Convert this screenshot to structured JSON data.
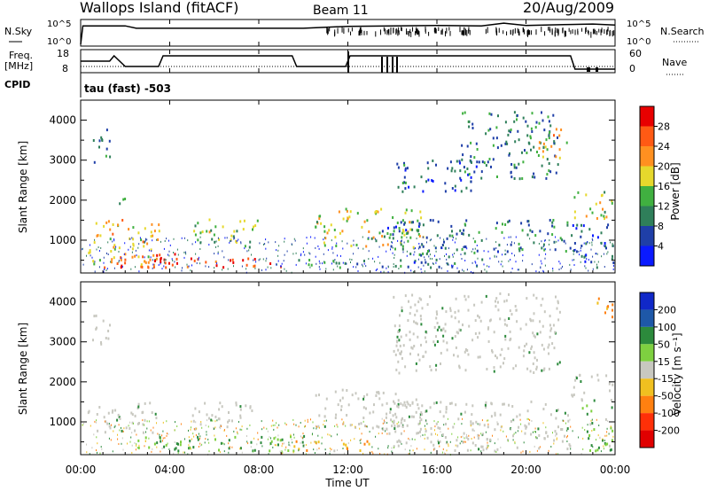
{
  "header": {
    "station": "Wallops Island (fitACF)",
    "beam": "Beam 11",
    "date": "20/Aug/2009"
  },
  "top_panels": {
    "nsky_label": "N.Sky",
    "nsearch_label": "N.Search",
    "freq_label": "Freq.",
    "freq_unit": "[MHz]",
    "nave_label": "Nave",
    "cpid_label": "CPID",
    "cpid_value": "tau (fast) -503",
    "noise_ticks_left": [
      "10^5",
      "10^0"
    ],
    "noise_ticks_right": [
      "10^5",
      "10^0"
    ],
    "freq_ticks": [
      "18",
      "8"
    ],
    "nave_ticks": [
      "60",
      "0"
    ]
  },
  "power_panel": {
    "ylabel": "Slant Range [km]",
    "colorbar_label": "Power [dB]",
    "colorbar_ticks": [
      "28",
      "24",
      "20",
      "16",
      "12",
      "8",
      "4"
    ]
  },
  "velocity_panel": {
    "ylabel": "Slant Range [km]",
    "colorbar_label": "Velocity [m s⁻¹]",
    "colorbar_ticks": [
      "200",
      "100",
      "50",
      "15",
      "-15",
      "-50",
      "-100",
      "-200"
    ]
  },
  "x_axis": {
    "title": "Time UT",
    "ticks": [
      "00:00",
      "04:00",
      "08:00",
      "12:00",
      "16:00",
      "20:00",
      "00:00"
    ]
  },
  "colors": {
    "power_scale": [
      "#0a1aff",
      "#1f3fa8",
      "#2f7f5a",
      "#40b040",
      "#e6d82c",
      "#ff9020",
      "#ff5a14",
      "#e80000"
    ],
    "velocity_scale": [
      "#1028c8",
      "#1e58a8",
      "#2c8a3c",
      "#7ed040",
      "#c8c8c0",
      "#f0c020",
      "#ff8010",
      "#ff3008",
      "#e00000"
    ],
    "ground_scatter": "#c8c8c0"
  },
  "chart_data": [
    {
      "type": "line",
      "name_label": "N.Sky",
      "x_unit": "hours UT",
      "y_scale": "log",
      "ylim": [
        1,
        100000
      ],
      "x": [
        0,
        0.1,
        2,
        2.5,
        3.5,
        4,
        6,
        8,
        10,
        12,
        14,
        16,
        18,
        19,
        20,
        22,
        23,
        24
      ],
      "values": [
        1,
        10000,
        10000,
        3000,
        3000,
        3000,
        3000,
        3000,
        3000,
        8000,
        10000,
        12000,
        10000,
        40000,
        12000,
        20000,
        25000,
        15000
      ]
    },
    {
      "type": "line",
      "name_label": "Freq.",
      "x_unit": "hours UT",
      "ylim": [
        8,
        18
      ],
      "x": [
        0,
        1.3,
        1.5,
        2.0,
        3.5,
        3.7,
        9.5,
        9.7,
        11.9,
        12.1,
        22.0,
        22.2,
        24
      ],
      "values": [
        13.5,
        13.5,
        16.5,
        10.5,
        10.5,
        16.5,
        16.5,
        10.5,
        10.5,
        16.5,
        16.5,
        9.0,
        9.0
      ]
    },
    {
      "type": "heatmap",
      "panel": "power",
      "x_unit": "hours UT",
      "xlim": [
        0,
        24
      ],
      "ylim": [
        180,
        4500
      ],
      "value_label": "Power [dB]",
      "value_range": [
        0,
        30
      ],
      "regions": [
        {
          "t": [
            0.3,
            3.5
          ],
          "r": [
            300,
            1500
          ],
          "level": 18
        },
        {
          "t": [
            1.0,
            4.5
          ],
          "r": [
            300,
            700
          ],
          "level": 24
        },
        {
          "t": [
            3.0,
            9.5
          ],
          "r": [
            300,
            550
          ],
          "level": 27
        },
        {
          "t": [
            5.0,
            8.0
          ],
          "r": [
            800,
            1500
          ],
          "level": 14
        },
        {
          "t": [
            0.5,
            1.3
          ],
          "r": [
            2900,
            3800
          ],
          "level": 9
        },
        {
          "t": [
            1.7,
            2.1
          ],
          "r": [
            1800,
            2300
          ],
          "level": 10
        },
        {
          "t": [
            9.5,
            13.0
          ],
          "r": [
            300,
            500
          ],
          "level": 11
        },
        {
          "t": [
            10.5,
            15.5
          ],
          "r": [
            800,
            1800
          ],
          "level": 16
        },
        {
          "t": [
            13.5,
            18.0
          ],
          "r": [
            300,
            1500
          ],
          "level": 8
        },
        {
          "t": [
            14.0,
            18.0
          ],
          "r": [
            2200,
            3000
          ],
          "level": 7
        },
        {
          "t": [
            17.0,
            21.5
          ],
          "r": [
            2500,
            4200
          ],
          "level": 9
        },
        {
          "t": [
            20.5,
            21.8
          ],
          "r": [
            3000,
            3800
          ],
          "level": 18
        },
        {
          "t": [
            18.5,
            22.0
          ],
          "r": [
            700,
            1500
          ],
          "level": 9
        },
        {
          "t": [
            22.0,
            23.9
          ],
          "r": [
            1500,
            2200
          ],
          "level": 15
        },
        {
          "t": [
            22.0,
            23.9
          ],
          "r": [
            300,
            1400
          ],
          "level": 6
        }
      ]
    },
    {
      "type": "heatmap",
      "panel": "velocity",
      "x_unit": "hours UT",
      "xlim": [
        0,
        24
      ],
      "ylim": [
        180,
        4500
      ],
      "value_label": "Velocity [m s⁻¹]",
      "value_range": [
        -200,
        200
      ],
      "regions": [
        {
          "t": [
            0.3,
            3.5
          ],
          "r": [
            700,
            1500
          ],
          "value": 0,
          "ground": true
        },
        {
          "t": [
            2.5,
            10.0
          ],
          "r": [
            250,
            650
          ],
          "value": 60
        },
        {
          "t": [
            9.5,
            13.0
          ],
          "r": [
            250,
            500
          ],
          "value": -40
        },
        {
          "t": [
            5.0,
            8.0
          ],
          "r": [
            800,
            1500
          ],
          "value": 0,
          "ground": true
        },
        {
          "t": [
            0.5,
            1.3
          ],
          "r": [
            2900,
            3800
          ],
          "value": 0,
          "ground": true
        },
        {
          "t": [
            10.5,
            15.5
          ],
          "r": [
            800,
            1800
          ],
          "value": 0,
          "ground": true
        },
        {
          "t": [
            14.0,
            21.5
          ],
          "r": [
            2200,
            4200
          ],
          "value": 0,
          "ground": true
        },
        {
          "t": [
            13.5,
            22.0
          ],
          "r": [
            250,
            1500
          ],
          "value": 0,
          "ground": true
        },
        {
          "t": [
            22.0,
            23.9
          ],
          "r": [
            1500,
            2200
          ],
          "value": 0,
          "ground": true
        },
        {
          "t": [
            22.5,
            23.9
          ],
          "r": [
            250,
            1400
          ],
          "value": 40
        },
        {
          "t": [
            23.0,
            23.9
          ],
          "r": [
            3600,
            4300
          ],
          "value": -60
        }
      ]
    }
  ]
}
